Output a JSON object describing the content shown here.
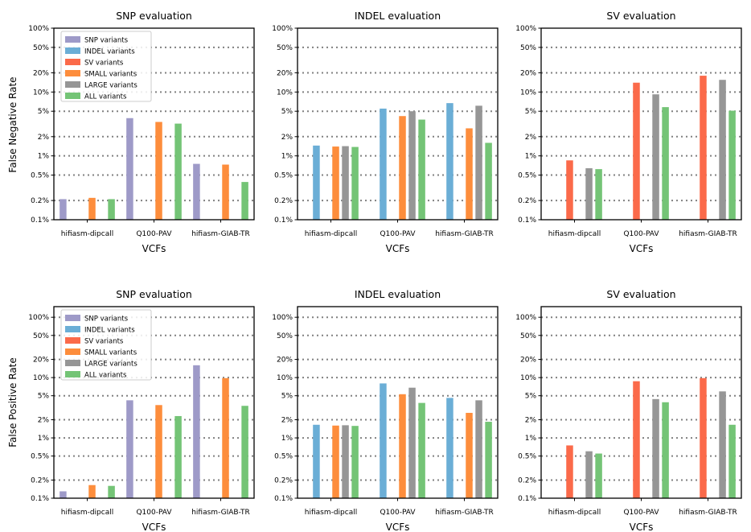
{
  "figure": {
    "row_ylabels": [
      "False Negative Rate",
      "False Positive Rate"
    ],
    "legend_order": [
      "SNP variants",
      "INDEL variants",
      "SV variants",
      "SMALL variants",
      "LARGE variants",
      "ALL variants"
    ]
  },
  "colors": {
    "SNP variants": "#9e9ac8",
    "INDEL variants": "#6baed6",
    "SV variants": "#fb6a4a",
    "SMALL variants": "#fd8d3c",
    "LARGE variants": "#969696",
    "ALL variants": "#74c476"
  },
  "chart_data": [
    {
      "type": "bar",
      "title": "SNP evaluation",
      "xlabel": "VCFs",
      "ylabel": "False Negative Rate",
      "yscale": "log",
      "ylim": [
        0.1,
        100
      ],
      "yticks": [
        "0.1%",
        "0.2%",
        "0.5%",
        "1%",
        "2%",
        "5%",
        "10%",
        "20%",
        "50%",
        "100%"
      ],
      "categories": [
        "hifiasm-dipcall",
        "Q100-PAV",
        "hifiasm-GIAB-TR"
      ],
      "legend": "top-left",
      "series": [
        {
          "name": "SNP variants",
          "values": [
            0.21,
            3.9,
            0.75
          ]
        },
        {
          "name": "INDEL variants",
          "values": [
            null,
            null,
            null
          ]
        },
        {
          "name": "SV variants",
          "values": [
            null,
            null,
            null
          ]
        },
        {
          "name": "SMALL variants",
          "values": [
            0.22,
            3.4,
            0.73
          ]
        },
        {
          "name": "LARGE variants",
          "values": [
            null,
            null,
            null
          ]
        },
        {
          "name": "ALL variants",
          "values": [
            0.21,
            3.2,
            0.39
          ]
        }
      ]
    },
    {
      "type": "bar",
      "title": "INDEL evaluation",
      "xlabel": "VCFs",
      "ylabel": "",
      "yscale": "log",
      "ylim": [
        0.1,
        100
      ],
      "yticks": [
        "0.1%",
        "0.2%",
        "0.5%",
        "1%",
        "2%",
        "5%",
        "10%",
        "20%",
        "50%",
        "100%"
      ],
      "categories": [
        "hifiasm-dipcall",
        "Q100-PAV",
        "hifiasm-GIAB-TR"
      ],
      "legend": "none",
      "series": [
        {
          "name": "SNP variants",
          "values": [
            null,
            null,
            null
          ]
        },
        {
          "name": "INDEL variants",
          "values": [
            1.45,
            5.5,
            6.7
          ]
        },
        {
          "name": "SV variants",
          "values": [
            null,
            null,
            null
          ]
        },
        {
          "name": "SMALL variants",
          "values": [
            1.4,
            4.2,
            2.7
          ]
        },
        {
          "name": "LARGE variants",
          "values": [
            1.42,
            5.0,
            6.1
          ]
        },
        {
          "name": "ALL variants",
          "values": [
            1.38,
            3.7,
            1.6
          ]
        }
      ]
    },
    {
      "type": "bar",
      "title": "SV evaluation",
      "xlabel": "VCFs",
      "ylabel": "",
      "yscale": "log",
      "ylim": [
        0.1,
        100
      ],
      "yticks": [
        "0.1%",
        "0.2%",
        "0.5%",
        "1%",
        "2%",
        "5%",
        "10%",
        "20%",
        "50%",
        "100%"
      ],
      "categories": [
        "hifiasm-dipcall",
        "Q100-PAV",
        "hifiasm-GIAB-TR"
      ],
      "legend": "none",
      "series": [
        {
          "name": "SNP variants",
          "values": [
            null,
            null,
            null
          ]
        },
        {
          "name": "INDEL variants",
          "values": [
            null,
            null,
            null
          ]
        },
        {
          "name": "SV variants",
          "values": [
            0.85,
            14.0,
            18.0
          ]
        },
        {
          "name": "SMALL variants",
          "values": [
            null,
            null,
            null
          ]
        },
        {
          "name": "LARGE variants",
          "values": [
            0.64,
            9.2,
            15.5
          ]
        },
        {
          "name": "ALL variants",
          "values": [
            0.62,
            5.8,
            5.1
          ]
        }
      ]
    },
    {
      "type": "bar",
      "title": "SNP evaluation",
      "xlabel": "VCFs",
      "ylabel": "False Positive Rate",
      "yscale": "log",
      "ylim": [
        0.1,
        150
      ],
      "yticks": [
        "0.1%",
        "0.2%",
        "0.5%",
        "1%",
        "2%",
        "5%",
        "10%",
        "20%",
        "50%",
        "100%"
      ],
      "categories": [
        "hifiasm-dipcall",
        "Q100-PAV",
        "hifiasm-GIAB-TR"
      ],
      "legend": "top-left",
      "series": [
        {
          "name": "SNP variants",
          "values": [
            0.13,
            4.2,
            16.0
          ]
        },
        {
          "name": "INDEL variants",
          "values": [
            null,
            null,
            null
          ]
        },
        {
          "name": "SV variants",
          "values": [
            null,
            null,
            null
          ]
        },
        {
          "name": "SMALL variants",
          "values": [
            0.165,
            3.5,
            9.8
          ]
        },
        {
          "name": "LARGE variants",
          "values": [
            null,
            null,
            null
          ]
        },
        {
          "name": "ALL variants",
          "values": [
            0.16,
            2.3,
            3.4
          ]
        }
      ]
    },
    {
      "type": "bar",
      "title": "INDEL evaluation",
      "xlabel": "VCFs",
      "ylabel": "",
      "yscale": "log",
      "ylim": [
        0.1,
        150
      ],
      "yticks": [
        "0.1%",
        "0.2%",
        "0.5%",
        "1%",
        "2%",
        "5%",
        "10%",
        "20%",
        "50%",
        "100%"
      ],
      "categories": [
        "hifiasm-dipcall",
        "Q100-PAV",
        "hifiasm-GIAB-TR"
      ],
      "legend": "none",
      "series": [
        {
          "name": "SNP variants",
          "values": [
            null,
            null,
            null
          ]
        },
        {
          "name": "INDEL variants",
          "values": [
            1.65,
            8.0,
            4.6
          ]
        },
        {
          "name": "SV variants",
          "values": [
            null,
            null,
            null
          ]
        },
        {
          "name": "SMALL variants",
          "values": [
            1.6,
            5.3,
            2.6
          ]
        },
        {
          "name": "LARGE variants",
          "values": [
            1.62,
            6.8,
            4.2
          ]
        },
        {
          "name": "ALL variants",
          "values": [
            1.58,
            3.8,
            1.85
          ]
        }
      ]
    },
    {
      "type": "bar",
      "title": "SV evaluation",
      "xlabel": "VCFs",
      "ylabel": "",
      "yscale": "log",
      "ylim": [
        0.1,
        150
      ],
      "yticks": [
        "0.1%",
        "0.2%",
        "0.5%",
        "1%",
        "2%",
        "5%",
        "10%",
        "20%",
        "50%",
        "100%"
      ],
      "categories": [
        "hifiasm-dipcall",
        "Q100-PAV",
        "hifiasm-GIAB-TR"
      ],
      "legend": "none",
      "series": [
        {
          "name": "SNP variants",
          "values": [
            null,
            null,
            null
          ]
        },
        {
          "name": "INDEL variants",
          "values": [
            null,
            null,
            null
          ]
        },
        {
          "name": "SV variants",
          "values": [
            0.75,
            8.7,
            9.8
          ]
        },
        {
          "name": "SMALL variants",
          "values": [
            null,
            null,
            null
          ]
        },
        {
          "name": "LARGE variants",
          "values": [
            0.6,
            4.4,
            5.9
          ]
        },
        {
          "name": "ALL variants",
          "values": [
            0.55,
            3.9,
            1.65
          ]
        }
      ]
    }
  ]
}
